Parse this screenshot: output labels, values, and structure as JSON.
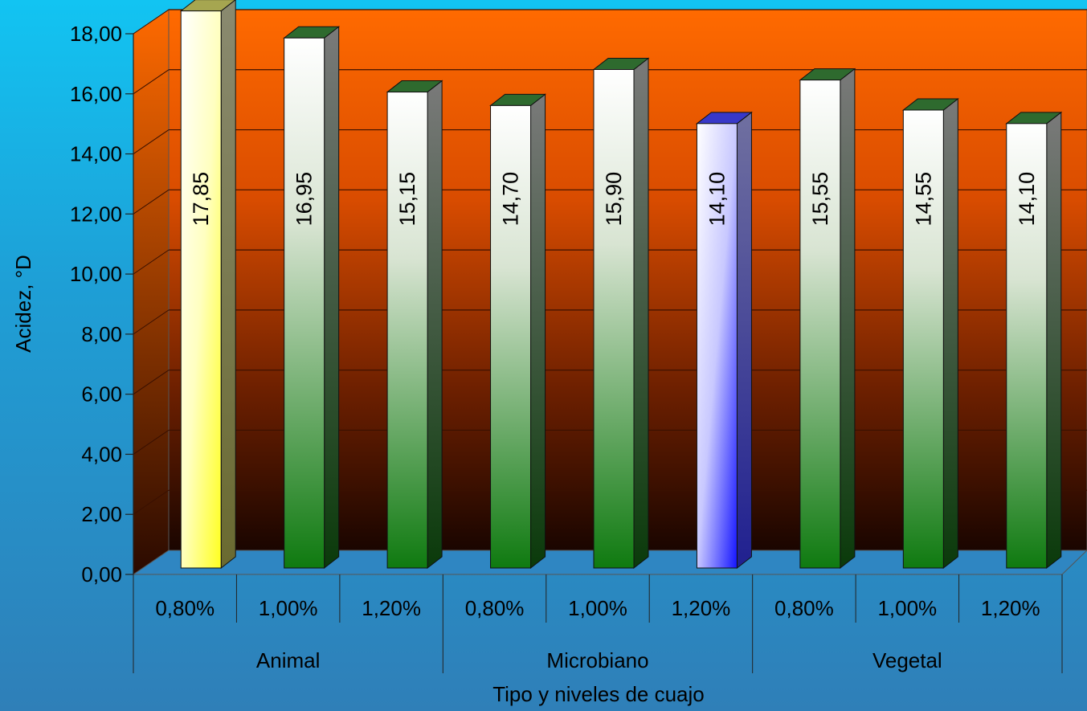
{
  "chart_data": {
    "type": "bar",
    "title": "",
    "xlabel": "Tipo y niveles de cuajo",
    "ylabel": "Acidez, °D",
    "ylim": [
      0,
      18
    ],
    "yticks": [
      "0,00",
      "2,00",
      "4,00",
      "6,00",
      "8,00",
      "10,00",
      "12,00",
      "14,00",
      "16,00",
      "18,00"
    ],
    "groups": [
      {
        "name": "Animal",
        "categories": [
          "0,80%",
          "1,00%",
          "1,20%"
        ],
        "values": [
          17.85,
          16.95,
          15.15
        ],
        "labels": [
          "17,85",
          "16,95",
          "15,15"
        ]
      },
      {
        "name": "Microbiano",
        "categories": [
          "0,80%",
          "1,00%",
          "1,20%"
        ],
        "values": [
          14.7,
          15.9,
          14.1
        ],
        "labels": [
          "14,70",
          "15,90",
          "14,10"
        ]
      },
      {
        "name": "Vegetal",
        "categories": [
          "0,80%",
          "1,00%",
          "1,20%"
        ],
        "values": [
          15.55,
          14.55,
          14.1
        ],
        "labels": [
          "15,55",
          "14,55",
          "14,10"
        ]
      }
    ],
    "highlight": {
      "max_color": "#ffff66",
      "min_color": "#6666ff",
      "default_color": "#2e8b2e"
    },
    "colors": {
      "wall_top": "#ff6a00",
      "wall_bottom": "#1a0500",
      "floor": "#2f86c2"
    },
    "grid": true,
    "legend": "none"
  }
}
